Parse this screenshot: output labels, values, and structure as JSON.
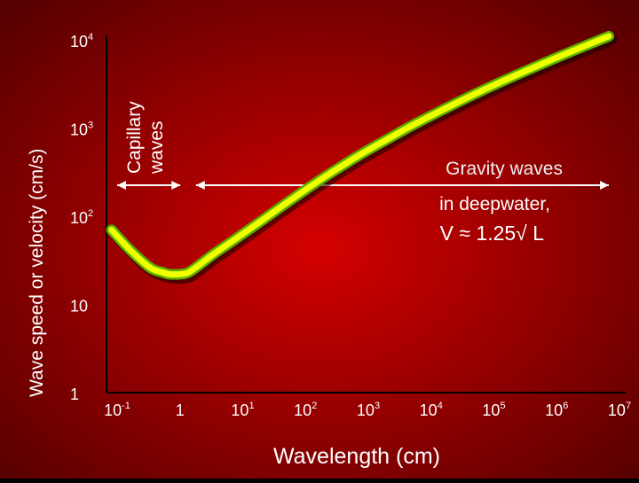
{
  "chart_data": {
    "type": "line",
    "xlabel": "Wavelength (cm)",
    "ylabel": "Wave speed or velocity (cm/s)",
    "xscale": "log",
    "yscale": "log",
    "xlim": [
      0.1,
      10000000
    ],
    "ylim": [
      1,
      10000
    ],
    "x_ticks": [
      {
        "base": "10",
        "exp": "-1",
        "value": 0.1
      },
      {
        "base": "1",
        "exp": "",
        "value": 1
      },
      {
        "base": "10",
        "exp": "1",
        "value": 10
      },
      {
        "base": "10",
        "exp": "2",
        "value": 100
      },
      {
        "base": "10",
        "exp": "3",
        "value": 1000
      },
      {
        "base": "10",
        "exp": "4",
        "value": 10000
      },
      {
        "base": "10",
        "exp": "5",
        "value": 100000
      },
      {
        "base": "10",
        "exp": "6",
        "value": 1000000
      },
      {
        "base": "10",
        "exp": "7",
        "value": 10000000
      }
    ],
    "y_ticks": [
      {
        "base": "1",
        "exp": "",
        "value": 1
      },
      {
        "base": "10",
        "exp": "",
        "value": 10
      },
      {
        "base": "10",
        "exp": "2",
        "value": 100
      },
      {
        "base": "10",
        "exp": "3",
        "value": 1000
      },
      {
        "base": "10",
        "exp": "4",
        "value": 10000
      }
    ],
    "series": [
      {
        "x": [
          0.12,
          0.25,
          0.5,
          0.8,
          1,
          1.5,
          2,
          3,
          5,
          10,
          30,
          100,
          300,
          1000,
          3000,
          10000,
          100000,
          1000000,
          10000000
        ],
        "y": [
          70,
          40,
          26,
          23,
          22,
          22,
          23,
          28,
          37,
          52,
          90,
          165,
          280,
          480,
          750,
          1200,
          2700,
          5600,
          11000
        ],
        "color": "#eeff00",
        "outline": "#58b000"
      }
    ],
    "regions": [
      {
        "label_lines": [
          "Capillary",
          "waves"
        ],
        "x_start": 0.1,
        "x_end": 1.5
      },
      {
        "label_lines": [
          "Gravity waves"
        ],
        "x_start": 1.8,
        "x_end": 10000000
      }
    ],
    "annotations": {
      "condition": "in deepwater,",
      "formula": "V ≈ 1.25√ L"
    }
  },
  "colors": {
    "background_center": "#d40000",
    "background_edge": "#560000",
    "text": "#ffffff",
    "axis": "#000000",
    "gravity_label": "#eeeeee"
  }
}
